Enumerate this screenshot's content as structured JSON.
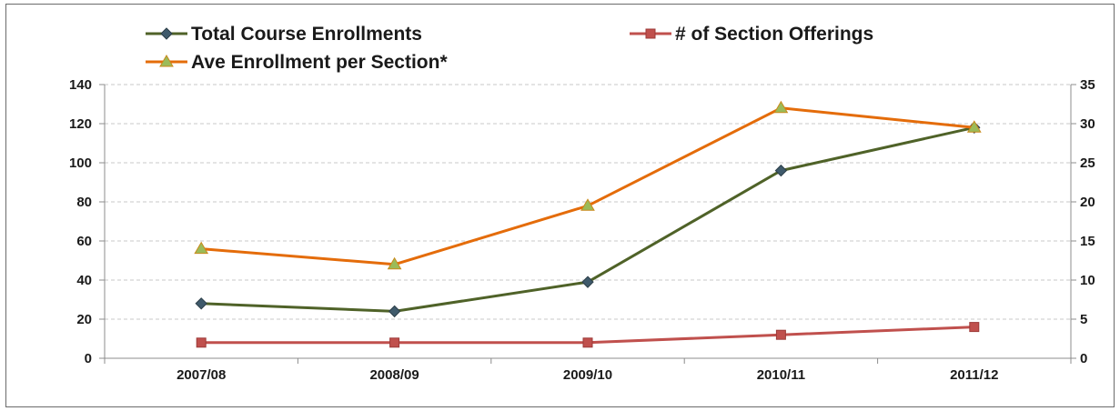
{
  "chart_data": {
    "type": "line",
    "categories": [
      "2007/08",
      "2008/09",
      "2009/10",
      "2010/11",
      "2011/12"
    ],
    "y_left": {
      "ylim": [
        0,
        140
      ],
      "ticks": [
        "0",
        "20",
        "40",
        "60",
        "80",
        "100",
        "120",
        "140"
      ]
    },
    "y_right": {
      "ylim": [
        0,
        35
      ],
      "ticks": [
        "0",
        "5",
        "10",
        "15",
        "20",
        "25",
        "30",
        "35"
      ]
    },
    "grid": true,
    "legend_position": "top",
    "series": [
      {
        "name": "Total Course Enrollments",
        "axis": "left",
        "values": [
          28,
          24,
          39,
          96,
          118
        ],
        "color": "#4f6228",
        "marker_color": "#3f5a6b",
        "marker": "diamond"
      },
      {
        "name": "# of Section Offerings",
        "axis": "left",
        "values": [
          8,
          8,
          8,
          12,
          16
        ],
        "color": "#c0504d",
        "marker_color": "#c0504d",
        "marker": "square"
      },
      {
        "name": "Ave Enrollment per Section*",
        "axis": "right",
        "values": [
          14,
          12,
          19.5,
          32,
          29.5
        ],
        "color": "#e46c0a",
        "marker_color": "#9bbb59",
        "marker": "triangle"
      }
    ]
  }
}
